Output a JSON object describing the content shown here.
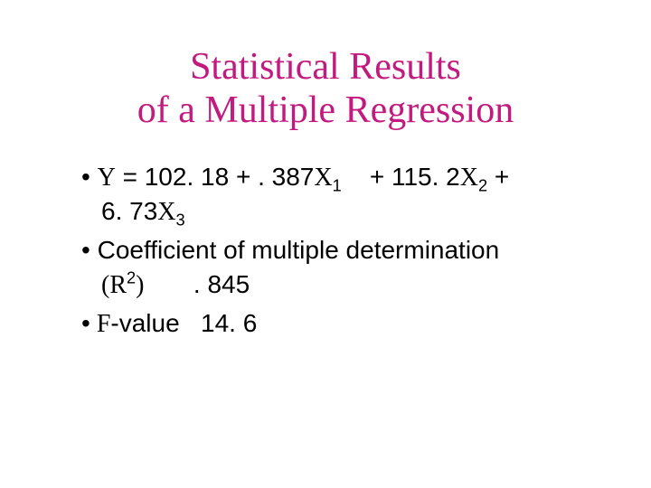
{
  "colors": {
    "title": "#c21a7e",
    "body": "#000000",
    "background": "#ffffff"
  },
  "title": {
    "line1": "Statistical Results",
    "line2": "of a Multiple  Regression"
  },
  "bullets": {
    "b1": {
      "mark": "•",
      "y": "Y",
      "part1": " = 102. 18 + . 387",
      "x1": "X",
      "sub1": "1",
      "part2": "    + 115. 2",
      "x2": "X",
      "sub2": "2",
      "part3": " +",
      "line2a": "6. 73",
      "x3": "X",
      "sub3": "3"
    },
    "b2": {
      "mark": "•",
      "text1": " Coefficient of multiple determination",
      "r": "(R",
      "sup": "2",
      "rclose": ")",
      "val": "       . 845"
    },
    "b3": {
      "mark": "•",
      "f": " F",
      "text": "-value   14. 6"
    }
  }
}
